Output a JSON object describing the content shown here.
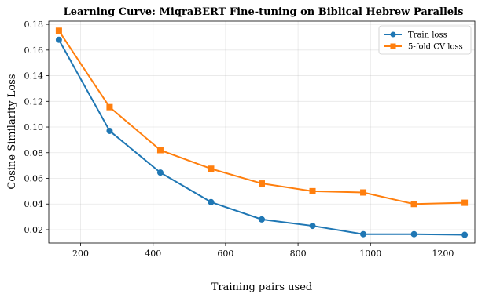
{
  "chart_data": {
    "type": "line",
    "title": "Learning Curve: MiqraBERT Fine-tuning on Biblical Hebrew Parallels",
    "xlabel": "Training pairs used",
    "ylabel": "Cosine Similarity Loss",
    "xlim": [
      112,
      1288
    ],
    "ylim": [
      0.0096,
      0.1825
    ],
    "xticks": [
      200,
      400,
      600,
      800,
      1000,
      1200
    ],
    "yticks": [
      0.02,
      0.04,
      0.06,
      0.08,
      0.1,
      0.12,
      0.14,
      0.16,
      0.18
    ],
    "ytick_labels": [
      "0.02",
      "0.04",
      "0.06",
      "0.08",
      "0.10",
      "0.12",
      "0.14",
      "0.16",
      "0.18"
    ],
    "grid": true,
    "legend_position": "top-right",
    "x": [
      140,
      280,
      420,
      560,
      700,
      840,
      980,
      1120,
      1260
    ],
    "series": [
      {
        "name": "Train loss",
        "marker": "circle",
        "color": "#1f77b4",
        "values": [
          0.168,
          0.097,
          0.0645,
          0.0415,
          0.028,
          0.023,
          0.0165,
          0.0165,
          0.016
        ]
      },
      {
        "name": "5-fold CV loss",
        "marker": "square",
        "color": "#ff7f0e",
        "values": [
          0.175,
          0.1155,
          0.082,
          0.0675,
          0.056,
          0.05,
          0.049,
          0.04,
          0.041
        ]
      }
    ]
  }
}
